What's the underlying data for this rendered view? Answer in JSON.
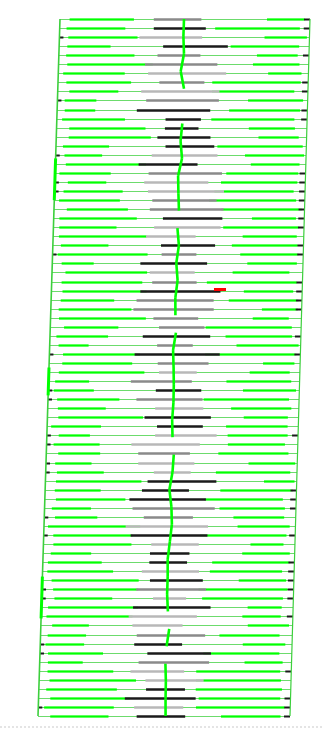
{
  "pattern": {
    "rows": 78,
    "tilt": "left-leaning",
    "colors": {
      "background": "#ffffff",
      "bright_line": "#00ff00",
      "mid_line": "#3ccf3c",
      "dark_segment": "#1a1a1a",
      "gray_segment": "#8a8a8a",
      "light_gray_segment": "#b8b8b8",
      "marker": "#ff0000",
      "baseline_dots": "#c8c8c8"
    },
    "has_red_marker": true
  }
}
